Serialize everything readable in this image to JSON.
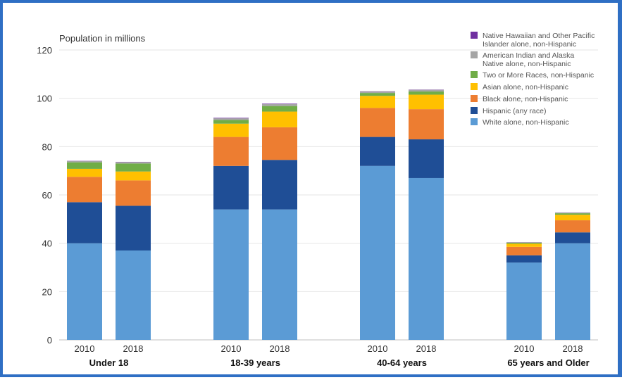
{
  "chart_data": {
    "type": "bar",
    "stacked": true,
    "ylabel": "Population in millions",
    "ylim": [
      0,
      120
    ],
    "yticks": [
      0,
      20,
      40,
      60,
      80,
      100,
      120
    ],
    "grid": true,
    "legend_position": "top-right",
    "groups": [
      {
        "label": "Under 18",
        "years": [
          "2010",
          "2018"
        ]
      },
      {
        "label": "18-39 years",
        "years": [
          "2010",
          "2018"
        ]
      },
      {
        "label": "40-64 years",
        "years": [
          "2010",
          "2018"
        ]
      },
      {
        "label": "65 years and Older",
        "years": [
          "2010",
          "2018"
        ]
      }
    ],
    "series": [
      {
        "name": "White alone, non-Hispanic",
        "color": "#5b9bd5",
        "values": [
          40,
          37,
          54,
          54,
          72,
          67,
          32,
          40
        ]
      },
      {
        "name": "Hispanic (any race)",
        "color": "#1f4e96",
        "values": [
          17,
          18.5,
          18,
          20.5,
          12,
          16,
          3,
          4.5
        ]
      },
      {
        "name": "Black alone, non-Hispanic",
        "color": "#ed7d31",
        "values": [
          10.5,
          10.5,
          12,
          13.5,
          12,
          12.5,
          3.5,
          5
        ]
      },
      {
        "name": "Asian alone, non-Hispanic",
        "color": "#ffc000",
        "values": [
          3.3,
          3.7,
          5.5,
          6.5,
          5,
          6,
          1.3,
          2.3
        ]
      },
      {
        "name": "Two or More Races, non-Hispanic",
        "color": "#70ad47",
        "values": [
          2.7,
          3.3,
          1.5,
          2.3,
          1.2,
          1.3,
          0.4,
          0.6
        ]
      },
      {
        "name": "American Indian and Alaska Native alone, non-Hispanic",
        "color": "#a5a5a5",
        "values": [
          0.5,
          0.6,
          0.7,
          0.8,
          0.6,
          0.7,
          0.2,
          0.3
        ]
      },
      {
        "name": "Native Hawaiian and Other Pacific Islander alone, non-Hispanic",
        "color": "#7030a0",
        "values": [
          0.1,
          0.1,
          0.2,
          0.2,
          0.1,
          0.1,
          0.05,
          0.05
        ]
      }
    ]
  }
}
